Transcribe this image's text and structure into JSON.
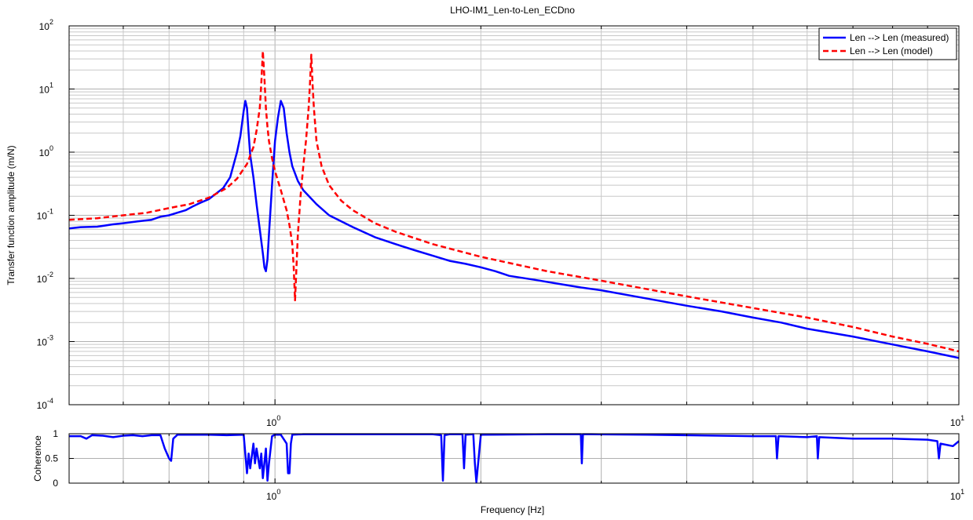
{
  "chart_data": [
    {
      "type": "line",
      "title": "LHO-IM1_Len-to-Len_ECDno",
      "xlabel": "",
      "ylabel": "Transfer function amplitude (m/N)",
      "xscale": "log",
      "yscale": "log",
      "xlim": [
        0.5,
        10
      ],
      "ylim": [
        0.0001,
        100
      ],
      "grid": true,
      "legend_position": "top-right",
      "xticks": [
        {
          "base": "10",
          "exp": "0",
          "value": 1
        },
        {
          "base": "10",
          "exp": "1",
          "value": 10
        }
      ],
      "yticks": [
        {
          "base": "10",
          "exp": "-4",
          "value": 0.0001
        },
        {
          "base": "10",
          "exp": "-3",
          "value": 0.001
        },
        {
          "base": "10",
          "exp": "-2",
          "value": 0.01
        },
        {
          "base": "10",
          "exp": "-1",
          "value": 0.1
        },
        {
          "base": "10",
          "exp": "0",
          "value": 1
        },
        {
          "base": "10",
          "exp": "1",
          "value": 10
        },
        {
          "base": "10",
          "exp": "2",
          "value": 100
        }
      ],
      "series": [
        {
          "name": "Len --> Len (measured)",
          "color": "#0000ff",
          "style": "solid",
          "x": [
            0.5,
            0.52,
            0.55,
            0.58,
            0.6,
            0.63,
            0.66,
            0.68,
            0.7,
            0.72,
            0.74,
            0.76,
            0.78,
            0.8,
            0.82,
            0.84,
            0.86,
            0.88,
            0.89,
            0.9,
            0.905,
            0.91,
            0.915,
            0.92,
            0.93,
            0.94,
            0.95,
            0.96,
            0.965,
            0.97,
            0.975,
            0.98,
            0.99,
            1.0,
            1.01,
            1.02,
            1.03,
            1.04,
            1.05,
            1.06,
            1.08,
            1.1,
            1.15,
            1.2,
            1.3,
            1.4,
            1.5,
            1.6,
            1.7,
            1.8,
            1.85,
            1.9,
            2.0,
            2.1,
            2.2,
            2.4,
            2.6,
            2.8,
            3.0,
            3.5,
            4.0,
            4.5,
            5.0,
            5.5,
            6.0,
            7.0,
            8.0,
            9.0,
            10.0
          ],
          "y": [
            0.062,
            0.065,
            0.066,
            0.072,
            0.075,
            0.08,
            0.085,
            0.095,
            0.1,
            0.11,
            0.12,
            0.14,
            0.16,
            0.18,
            0.22,
            0.27,
            0.4,
            1.0,
            1.8,
            4.5,
            6.5,
            5.0,
            2.0,
            0.9,
            0.4,
            0.15,
            0.06,
            0.025,
            0.015,
            0.013,
            0.02,
            0.05,
            0.3,
            1.5,
            3.5,
            6.5,
            5.0,
            2.0,
            1.0,
            0.6,
            0.35,
            0.25,
            0.15,
            0.1,
            0.065,
            0.045,
            0.035,
            0.028,
            0.023,
            0.019,
            0.018,
            0.017,
            0.015,
            0.013,
            0.011,
            0.0095,
            0.0082,
            0.0072,
            0.0065,
            0.0048,
            0.0037,
            0.003,
            0.0024,
            0.002,
            0.0016,
            0.0012,
            0.0009,
            0.0007,
            0.00055
          ]
        },
        {
          "name": "Len --> Len (model)",
          "color": "#ff0000",
          "style": "dashed",
          "x": [
            0.5,
            0.55,
            0.6,
            0.65,
            0.7,
            0.75,
            0.8,
            0.85,
            0.88,
            0.91,
            0.93,
            0.94,
            0.95,
            0.955,
            0.96,
            0.965,
            0.97,
            0.975,
            0.98,
            0.99,
            1.0,
            1.02,
            1.04,
            1.05,
            1.06,
            1.065,
            1.07,
            1.075,
            1.08,
            1.09,
            1.1,
            1.11,
            1.12,
            1.125,
            1.13,
            1.135,
            1.14,
            1.15,
            1.17,
            1.2,
            1.25,
            1.3,
            1.4,
            1.5,
            1.7,
            2.0,
            2.5,
            3.0,
            4.0,
            5.0,
            6.0,
            7.0,
            8.0,
            9.0,
            10.0
          ],
          "y": [
            0.085,
            0.09,
            0.1,
            0.11,
            0.13,
            0.15,
            0.19,
            0.27,
            0.38,
            0.65,
            1.2,
            2.2,
            5.0,
            12.0,
            40.0,
            15.0,
            5.0,
            2.5,
            1.5,
            0.8,
            0.5,
            0.25,
            0.12,
            0.07,
            0.035,
            0.015,
            0.0045,
            0.015,
            0.05,
            0.2,
            0.6,
            1.5,
            5.0,
            12.0,
            35.0,
            12.0,
            5.0,
            1.5,
            0.6,
            0.3,
            0.17,
            0.12,
            0.075,
            0.055,
            0.035,
            0.022,
            0.013,
            0.0092,
            0.0052,
            0.0034,
            0.0024,
            0.0017,
            0.0012,
            0.00092,
            0.0007
          ]
        }
      ]
    },
    {
      "type": "line",
      "title": "",
      "xlabel": "Frequency [Hz]",
      "ylabel": "Coherence",
      "xscale": "log",
      "xlim": [
        0.5,
        10
      ],
      "ylim": [
        0,
        1
      ],
      "grid": true,
      "xticks": [
        {
          "base": "10",
          "exp": "0",
          "value": 1
        },
        {
          "base": "10",
          "exp": "1",
          "value": 10
        }
      ],
      "yticks": [
        {
          "label": "0",
          "value": 0
        },
        {
          "label": "0.5",
          "value": 0.5
        },
        {
          "label": "1",
          "value": 1
        }
      ],
      "series": [
        {
          "name": "",
          "color": "#0000ff",
          "style": "solid",
          "x": [
            0.5,
            0.52,
            0.53,
            0.54,
            0.56,
            0.58,
            0.6,
            0.62,
            0.64,
            0.66,
            0.68,
            0.69,
            0.7,
            0.705,
            0.71,
            0.72,
            0.75,
            0.8,
            0.85,
            0.9,
            0.91,
            0.915,
            0.92,
            0.93,
            0.935,
            0.94,
            0.95,
            0.955,
            0.96,
            0.97,
            0.975,
            0.98,
            0.99,
            1.0,
            1.02,
            1.04,
            1.045,
            1.05,
            1.055,
            1.06,
            1.1,
            1.3,
            1.5,
            1.7,
            1.75,
            1.76,
            1.77,
            1.8,
            1.88,
            1.89,
            1.9,
            1.95,
            1.96,
            1.97,
            2.0,
            2.5,
            2.8,
            2.81,
            2.82,
            2.9,
            3.5,
            5.0,
            5.4,
            5.42,
            5.45,
            6.0,
            6.2,
            6.22,
            6.25,
            7.0,
            8.0,
            9.0,
            9.3,
            9.35,
            9.4,
            9.8,
            10.0
          ],
          "y": [
            0.95,
            0.95,
            0.9,
            0.97,
            0.96,
            0.93,
            0.96,
            0.97,
            0.95,
            0.97,
            0.97,
            0.7,
            0.5,
            0.45,
            0.9,
            0.98,
            0.98,
            0.98,
            0.97,
            0.98,
            0.2,
            0.6,
            0.3,
            0.8,
            0.4,
            0.7,
            0.3,
            0.6,
            0.1,
            0.7,
            0.05,
            0.4,
            0.95,
            0.98,
            0.98,
            0.8,
            0.2,
            0.2,
            0.8,
            0.98,
            0.99,
            0.99,
            0.99,
            0.99,
            0.97,
            0.05,
            0.97,
            0.99,
            0.99,
            0.3,
            0.98,
            0.99,
            0.4,
            0.02,
            0.98,
            0.99,
            0.99,
            0.4,
            0.99,
            0.99,
            0.98,
            0.95,
            0.95,
            0.5,
            0.95,
            0.93,
            0.95,
            0.5,
            0.93,
            0.9,
            0.9,
            0.88,
            0.85,
            0.5,
            0.8,
            0.75,
            0.85
          ]
        }
      ]
    }
  ]
}
